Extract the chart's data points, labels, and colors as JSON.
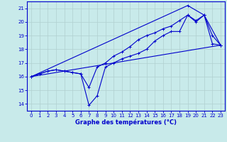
{
  "xlabel": "Graphe des températures (°C)",
  "bg_color": "#c8eaea",
  "grid_color": "#b0d0d0",
  "line_color": "#0000cc",
  "xlim": [
    -0.5,
    23.5
  ],
  "ylim": [
    13.5,
    21.5
  ],
  "xticks": [
    0,
    1,
    2,
    3,
    4,
    5,
    6,
    7,
    8,
    9,
    10,
    11,
    12,
    13,
    14,
    15,
    16,
    17,
    18,
    19,
    20,
    21,
    22,
    23
  ],
  "yticks": [
    14,
    15,
    16,
    17,
    18,
    19,
    20,
    21
  ],
  "line1_x": [
    0,
    1,
    2,
    3,
    4,
    5,
    6,
    7,
    8,
    9,
    10,
    11,
    12,
    13,
    14,
    15,
    16,
    17,
    18,
    19,
    20,
    21,
    22,
    23
  ],
  "line1_y": [
    16.0,
    16.2,
    16.4,
    16.5,
    16.4,
    16.3,
    16.2,
    13.9,
    14.6,
    16.7,
    17.0,
    17.3,
    17.5,
    17.7,
    18.0,
    18.6,
    19.0,
    19.3,
    19.3,
    20.5,
    20.0,
    20.5,
    18.4,
    18.3
  ],
  "line2_x": [
    0,
    1,
    2,
    3,
    4,
    5,
    6,
    7,
    8,
    9,
    10,
    11,
    12,
    13,
    14,
    15,
    16,
    17,
    18,
    19,
    20,
    21,
    22,
    23
  ],
  "line2_y": [
    16.0,
    16.2,
    16.4,
    16.5,
    16.4,
    16.3,
    16.2,
    15.2,
    16.7,
    17.0,
    17.5,
    17.8,
    18.2,
    18.7,
    19.0,
    19.2,
    19.5,
    19.7,
    20.1,
    20.5,
    20.1,
    20.5,
    19.0,
    18.3
  ],
  "line3_x": [
    0,
    23
  ],
  "line3_y": [
    16.0,
    18.3
  ],
  "line4_x": [
    0,
    19,
    21,
    23
  ],
  "line4_y": [
    16.0,
    21.2,
    20.5,
    18.3
  ]
}
